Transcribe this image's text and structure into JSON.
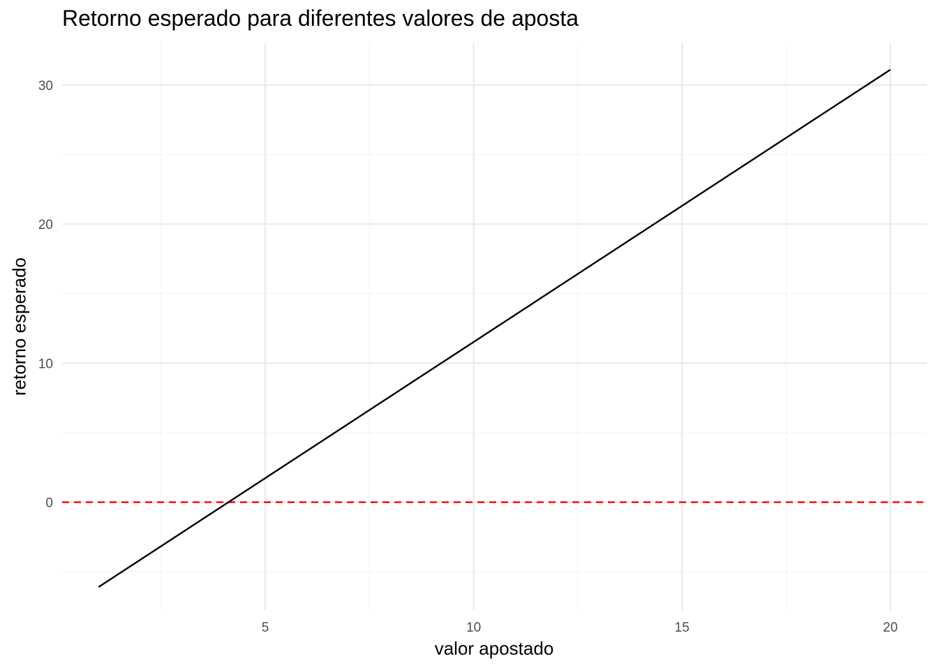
{
  "chart_data": {
    "type": "line",
    "title": "Retorno esperado para diferentes valores de aposta",
    "xlabel": "valor apostado",
    "ylabel": "retorno esperado",
    "x_ticks": [
      5,
      10,
      15,
      20
    ],
    "y_ticks": [
      0,
      10,
      20,
      30
    ],
    "xlim": [
      0.125,
      20.875
    ],
    "ylim": [
      -7.8,
      33
    ],
    "grid": true,
    "series": [
      {
        "x": [
          1,
          20
        ],
        "y": [
          -6.1,
          31.1
        ],
        "color": "#000000"
      }
    ],
    "reference_line": {
      "orientation": "horizontal",
      "y": 0,
      "style": "dashed",
      "color": "#ff0000"
    }
  },
  "colors": {
    "background": "#ffffff",
    "grid_major": "#ebebeb",
    "grid_minor": "#f4f4f4",
    "tick_text": "#4d4d4d",
    "line": "#000000",
    "reference": "#ff0000"
  }
}
